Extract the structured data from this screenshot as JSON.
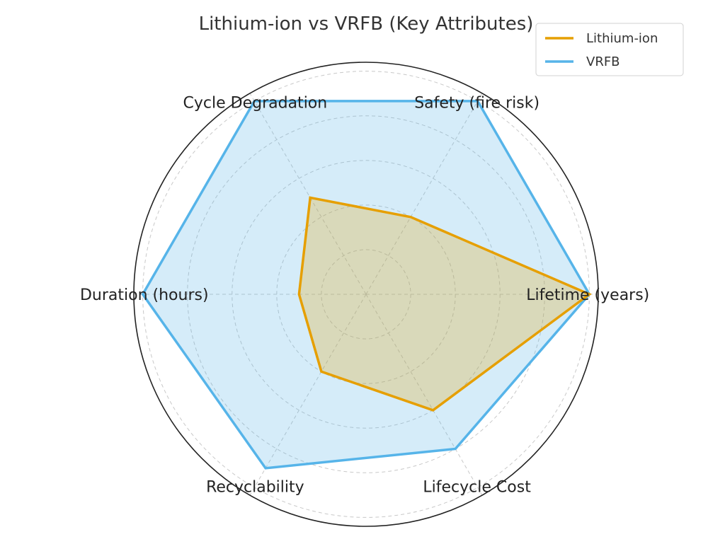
{
  "chart_data": {
    "type": "radar",
    "title": "Lithium-ion vs VRFB (Key Attributes)",
    "categories": [
      "Lifetime (years)",
      "Safety (fire risk)",
      "Cycle Degradation",
      "Duration (hours)",
      "Recyclability",
      "Lifecycle Cost"
    ],
    "series": [
      {
        "name": "Lithium-ion",
        "values": [
          10,
          4,
          5,
          3,
          4,
          6
        ],
        "color": "#E69F00"
      },
      {
        "name": "VRFB",
        "values": [
          10,
          10,
          10,
          10,
          9,
          8
        ],
        "color": "#56B4E9"
      }
    ],
    "rlim": [
      0,
      10.4
    ],
    "rgrid": [
      2,
      4,
      6,
      8,
      10
    ],
    "grid": true,
    "legend_position": "top-right"
  }
}
